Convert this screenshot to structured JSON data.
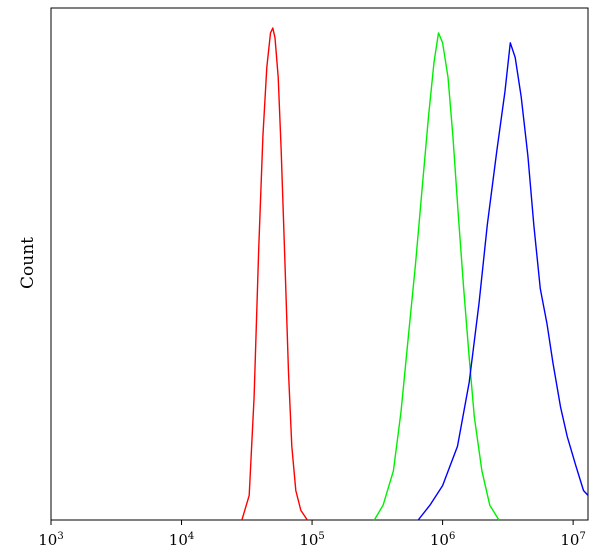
{
  "chart_data": {
    "type": "line",
    "title": "",
    "xlabel": "",
    "ylabel": "Count",
    "x_scale": "log",
    "xlim": [
      1000,
      13000000
    ],
    "ylim": [
      0,
      100
    ],
    "grid": false,
    "x_ticks": [
      {
        "base": "10",
        "exp": "3",
        "value": 1000
      },
      {
        "base": "10",
        "exp": "4",
        "value": 10000
      },
      {
        "base": "10",
        "exp": "5",
        "value": 100000
      },
      {
        "base": "10",
        "exp": "6",
        "value": 1000000
      },
      {
        "base": "10",
        "exp": "7",
        "value": 10000000
      }
    ],
    "series": [
      {
        "color": "#ff0000",
        "x": [
          29000,
          33000,
          36000,
          39000,
          42000,
          45000,
          48000,
          50000,
          52000,
          55000,
          58000,
          62000,
          66000,
          70000,
          75000,
          82000,
          92000
        ],
        "y": [
          0,
          5,
          25,
          55,
          78,
          92,
          99,
          100,
          98,
          90,
          75,
          52,
          30,
          15,
          6,
          2,
          0
        ]
      },
      {
        "color": "#00ee00",
        "x": [
          300000,
          350000,
          420000,
          480000,
          550000,
          620000,
          700000,
          780000,
          860000,
          930000,
          1000000,
          1100000,
          1200000,
          1320000,
          1450000,
          1600000,
          1750000,
          2000000,
          2300000,
          2700000
        ],
        "y": [
          0,
          3,
          10,
          22,
          38,
          52,
          68,
          82,
          93,
          99,
          97,
          90,
          78,
          62,
          47,
          33,
          21,
          10,
          3,
          0
        ]
      },
      {
        "color": "#0000ff",
        "x": [
          650000,
          800000,
          1000000,
          1300000,
          1600000,
          1900000,
          2200000,
          2600000,
          3000000,
          3300000,
          3600000,
          4000000,
          4500000,
          5000000,
          5600000,
          6300000,
          7000000,
          8000000,
          9000000,
          10500000,
          12000000,
          13000000
        ],
        "y": [
          0,
          3,
          7,
          15,
          28,
          44,
          60,
          75,
          87,
          97,
          94,
          86,
          74,
          60,
          47,
          40,
          32,
          23,
          17,
          11,
          6,
          5
        ]
      }
    ]
  }
}
